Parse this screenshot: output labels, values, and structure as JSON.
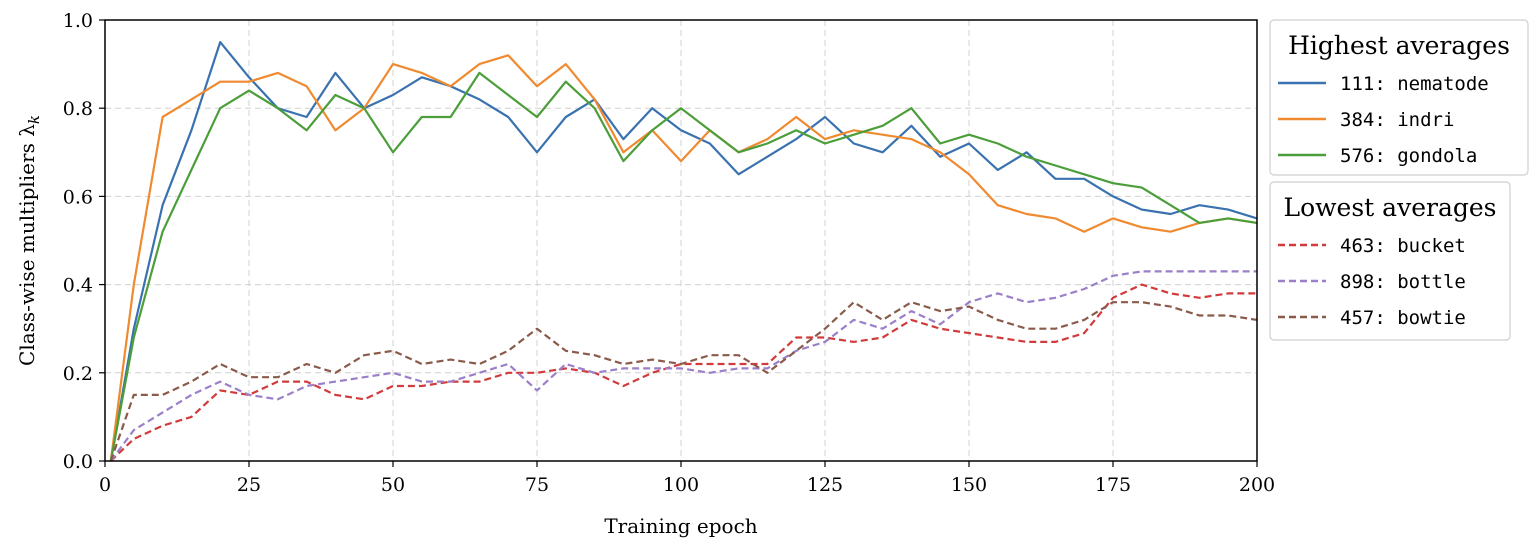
{
  "chart_data": {
    "type": "line",
    "xlabel": "Training epoch",
    "ylabel": "Class-wise multipliers λ",
    "ylabel_subscript": "k",
    "xlim": [
      0,
      200
    ],
    "ylim": [
      0,
      1.0
    ],
    "xticks": [
      "0",
      "25",
      "50",
      "75",
      "100",
      "125",
      "150",
      "175",
      "200"
    ],
    "yticks": [
      "0.0",
      "0.2",
      "0.4",
      "0.6",
      "0.8",
      "1.0"
    ],
    "grid": true,
    "legend_placement": "outside-right",
    "legends": [
      {
        "title": "Highest averages",
        "entries": [
          0,
          1,
          2
        ]
      },
      {
        "title": "Lowest averages",
        "entries": [
          3,
          4,
          5
        ]
      }
    ],
    "x": [
      1,
      5,
      10,
      15,
      20,
      25,
      30,
      35,
      40,
      45,
      50,
      55,
      60,
      65,
      70,
      75,
      80,
      85,
      90,
      95,
      100,
      105,
      110,
      115,
      120,
      125,
      130,
      135,
      140,
      145,
      150,
      155,
      160,
      165,
      170,
      175,
      180,
      185,
      190,
      195,
      200
    ],
    "series": [
      {
        "name": "111: nematode",
        "color": "#3a72b0",
        "dash": false,
        "values": [
          0.0,
          0.3,
          0.58,
          0.75,
          0.95,
          0.87,
          0.8,
          0.78,
          0.88,
          0.8,
          0.83,
          0.87,
          0.85,
          0.82,
          0.78,
          0.7,
          0.78,
          0.82,
          0.73,
          0.8,
          0.75,
          0.72,
          0.65,
          0.69,
          0.73,
          0.78,
          0.72,
          0.7,
          0.76,
          0.69,
          0.72,
          0.66,
          0.7,
          0.64,
          0.64,
          0.6,
          0.57,
          0.56,
          0.58,
          0.57,
          0.55
        ]
      },
      {
        "name": "384: indri",
        "color": "#f08a30",
        "dash": false,
        "values": [
          0.0,
          0.4,
          0.78,
          0.82,
          0.86,
          0.86,
          0.88,
          0.85,
          0.75,
          0.8,
          0.9,
          0.88,
          0.85,
          0.9,
          0.92,
          0.85,
          0.9,
          0.82,
          0.7,
          0.75,
          0.68,
          0.75,
          0.7,
          0.73,
          0.78,
          0.73,
          0.75,
          0.74,
          0.73,
          0.7,
          0.65,
          0.58,
          0.56,
          0.55,
          0.52,
          0.55,
          0.53,
          0.52,
          0.54,
          0.55,
          0.54
        ]
      },
      {
        "name": "576: gondola",
        "color": "#4b9e3a",
        "dash": false,
        "values": [
          0.0,
          0.28,
          0.52,
          0.66,
          0.8,
          0.84,
          0.8,
          0.75,
          0.83,
          0.8,
          0.7,
          0.78,
          0.78,
          0.88,
          0.83,
          0.78,
          0.86,
          0.8,
          0.68,
          0.75,
          0.8,
          0.75,
          0.7,
          0.72,
          0.75,
          0.72,
          0.74,
          0.76,
          0.8,
          0.72,
          0.74,
          0.72,
          0.69,
          0.67,
          0.65,
          0.63,
          0.62,
          0.58,
          0.54,
          0.55,
          0.54
        ]
      },
      {
        "name": "463: bucket",
        "color": "#d13b3b",
        "dash": true,
        "values": [
          0.0,
          0.05,
          0.08,
          0.1,
          0.16,
          0.15,
          0.18,
          0.18,
          0.15,
          0.14,
          0.17,
          0.17,
          0.18,
          0.18,
          0.2,
          0.2,
          0.21,
          0.2,
          0.17,
          0.2,
          0.22,
          0.22,
          0.22,
          0.22,
          0.28,
          0.28,
          0.27,
          0.28,
          0.32,
          0.3,
          0.29,
          0.28,
          0.27,
          0.27,
          0.29,
          0.37,
          0.4,
          0.38,
          0.37,
          0.38,
          0.38
        ]
      },
      {
        "name": "898: bottle",
        "color": "#9b7fc9",
        "dash": true,
        "values": [
          0.0,
          0.07,
          0.11,
          0.15,
          0.18,
          0.15,
          0.14,
          0.17,
          0.18,
          0.19,
          0.2,
          0.18,
          0.18,
          0.2,
          0.22,
          0.16,
          0.22,
          0.2,
          0.21,
          0.21,
          0.21,
          0.2,
          0.21,
          0.21,
          0.25,
          0.27,
          0.32,
          0.3,
          0.34,
          0.31,
          0.36,
          0.38,
          0.36,
          0.37,
          0.39,
          0.42,
          0.43,
          0.43,
          0.43,
          0.43,
          0.43
        ]
      },
      {
        "name": "457: bowtie",
        "color": "#8a5a4a",
        "dash": true,
        "values": [
          0.0,
          0.15,
          0.15,
          0.18,
          0.22,
          0.19,
          0.19,
          0.22,
          0.2,
          0.24,
          0.25,
          0.22,
          0.23,
          0.22,
          0.25,
          0.3,
          0.25,
          0.24,
          0.22,
          0.23,
          0.22,
          0.24,
          0.24,
          0.2,
          0.25,
          0.3,
          0.36,
          0.32,
          0.36,
          0.34,
          0.35,
          0.32,
          0.3,
          0.3,
          0.32,
          0.36,
          0.36,
          0.35,
          0.33,
          0.33,
          0.32
        ]
      }
    ]
  }
}
